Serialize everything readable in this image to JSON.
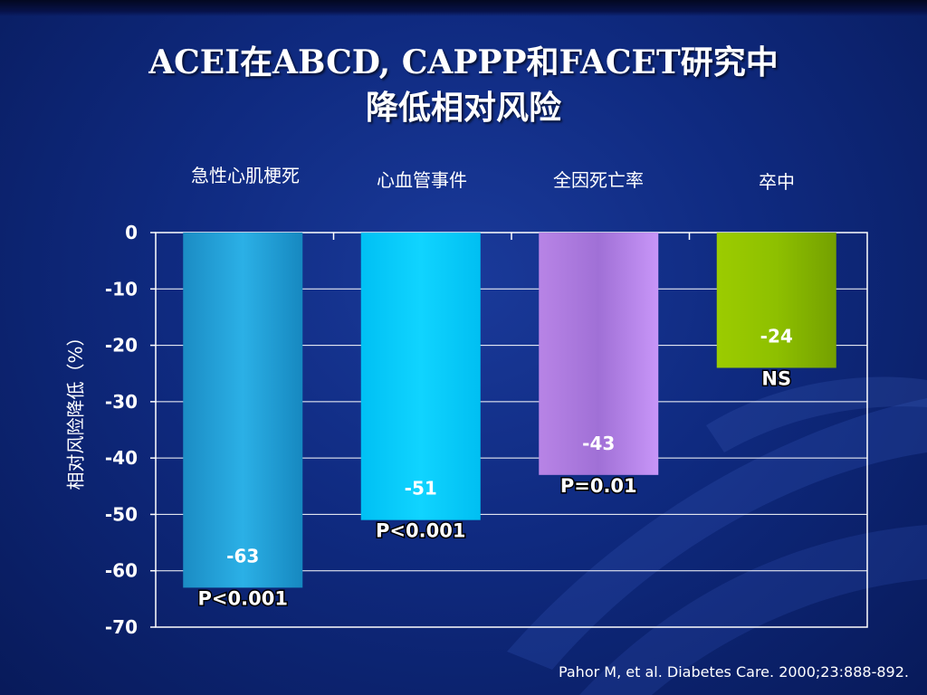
{
  "slide": {
    "title_line1": "ACEI在ABCD, CAPPP和FACET研究中",
    "title_line2": "降低相对风险",
    "source": "Pahor M, et al. Diabetes Care. 2000;23:888-892."
  },
  "chart_data": {
    "type": "bar",
    "title": "",
    "ylabel": "相对风险降低（%）",
    "xlabel": "",
    "ylim": [
      -70,
      0
    ],
    "yticks": [
      0,
      -10,
      -20,
      -30,
      -40,
      -50,
      -60,
      -70
    ],
    "grid": true,
    "categories": [
      "急性心肌梗死",
      "心血管事件",
      "全因死亡率",
      "卒中"
    ],
    "values": [
      -63,
      -51,
      -43,
      -24
    ],
    "value_labels": [
      "-63",
      "-51",
      "-43",
      "-24"
    ],
    "p_values": [
      "P<0.001",
      "P<0.001",
      "P=0.01",
      "NS"
    ],
    "colors": [
      "#1e9fd8",
      "#00c8f8",
      "#c890f4",
      "#8ec400"
    ]
  }
}
